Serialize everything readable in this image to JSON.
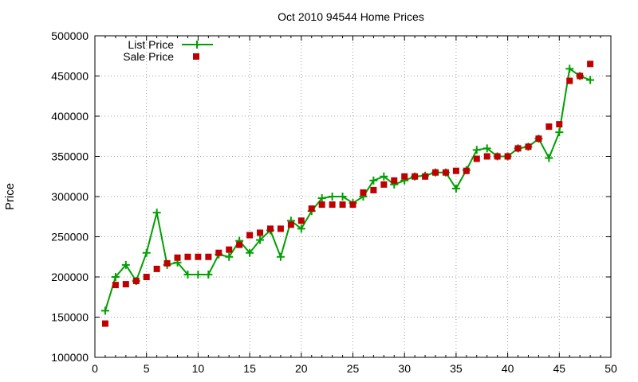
{
  "chart_data": {
    "type": "scatter",
    "title": "Oct 2010 94544 Home Prices",
    "xlabel": "",
    "ylabel": "Price",
    "xlim": [
      0,
      50
    ],
    "ylim": [
      100000,
      500000
    ],
    "xticks": [
      "0",
      "5",
      "10",
      "15",
      "20",
      "25",
      "30",
      "35",
      "40",
      "45",
      "50"
    ],
    "yticks": [
      "100000",
      "150000",
      "200000",
      "250000",
      "300000",
      "350000",
      "400000",
      "450000",
      "500000"
    ],
    "grid": true,
    "legend_position": "top-left",
    "series": [
      {
        "name": "List Price",
        "style": "line+plus",
        "color": "#00a000",
        "x": [
          1,
          2,
          3,
          4,
          5,
          6,
          7,
          8,
          9,
          10,
          11,
          12,
          13,
          14,
          15,
          16,
          17,
          18,
          19,
          20,
          21,
          22,
          23,
          24,
          25,
          26,
          27,
          28,
          29,
          30,
          31,
          32,
          33,
          34,
          35,
          36,
          37,
          38,
          39,
          40,
          41,
          42,
          43,
          44,
          45,
          46,
          47,
          48
        ],
        "y": [
          158000,
          200000,
          215000,
          195000,
          230000,
          280000,
          215000,
          218000,
          203000,
          203000,
          203000,
          228000,
          225000,
          245000,
          230000,
          246000,
          258000,
          225000,
          270000,
          260000,
          282000,
          298000,
          300000,
          300000,
          292000,
          300000,
          320000,
          325000,
          315000,
          320000,
          325000,
          326000,
          330000,
          330000,
          310000,
          333000,
          358000,
          360000,
          350000,
          350000,
          360000,
          362000,
          372000,
          348000,
          380000,
          459000,
          450000,
          445000
        ]
      },
      {
        "name": "Sale Price",
        "style": "square",
        "color": "#c00000",
        "x": [
          1,
          2,
          3,
          4,
          5,
          6,
          7,
          8,
          9,
          10,
          11,
          12,
          13,
          14,
          15,
          16,
          17,
          18,
          19,
          20,
          21,
          22,
          23,
          24,
          25,
          26,
          27,
          28,
          29,
          30,
          31,
          32,
          33,
          34,
          35,
          36,
          37,
          38,
          39,
          40,
          41,
          42,
          43,
          44,
          45,
          46,
          47,
          48
        ],
        "y": [
          142000,
          190000,
          191000,
          195000,
          200000,
          210000,
          217000,
          224000,
          225000,
          225000,
          225000,
          230000,
          234000,
          240000,
          252000,
          255000,
          260000,
          260000,
          265000,
          270000,
          285000,
          290000,
          290000,
          290000,
          290000,
          305000,
          308000,
          315000,
          320000,
          325000,
          325000,
          325000,
          330000,
          330000,
          332000,
          332000,
          347000,
          350000,
          350000,
          350000,
          360000,
          362000,
          372000,
          387000,
          390000,
          444000,
          450000,
          465000
        ]
      }
    ]
  }
}
